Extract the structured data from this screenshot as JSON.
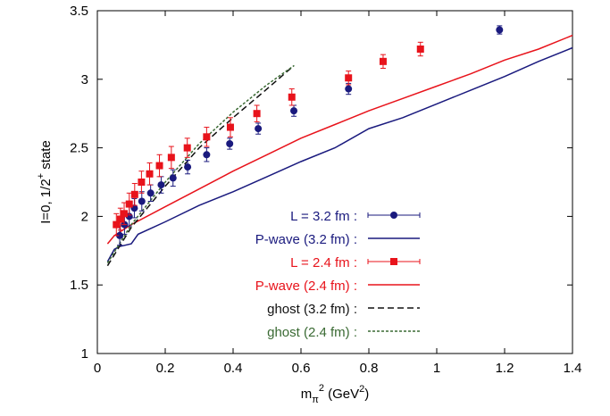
{
  "chart_data": {
    "type": "scatter",
    "xlabel_main": "m",
    "xlabel_sub": "π",
    "xlabel_sup": "2",
    "xlabel_units_open": " (GeV",
    "xlabel_units_sup": "2",
    "xlabel_units_close": ")",
    "ylabel_main": "I=0, 1/2",
    "ylabel_sup": "+",
    "ylabel_tail": " state",
    "xlim": [
      0,
      1.4
    ],
    "ylim": [
      1,
      3.5
    ],
    "xticks": [
      0,
      0.2,
      0.4,
      0.6,
      0.8,
      1,
      1.2,
      1.4
    ],
    "xtick_labels": [
      "0",
      "0.2",
      "0.4",
      "0.6",
      "0.8",
      "1",
      "1.2",
      "1.4"
    ],
    "yticks": [
      1,
      1.5,
      2,
      2.5,
      3,
      3.5
    ],
    "ytick_labels": [
      "1",
      "1.5",
      "2",
      "2.5",
      "3",
      "3.5"
    ],
    "legend_position": "lower-right",
    "series": [
      {
        "name": "L = 3.2 fm :",
        "kind": "points",
        "marker": "circle",
        "color": "#1a1a7e",
        "points": [
          {
            "x": 0.066,
            "y": 1.86,
            "err": 0.07
          },
          {
            "x": 0.08,
            "y": 1.94,
            "err": 0.07
          },
          {
            "x": 0.094,
            "y": 2.0,
            "err": 0.07
          },
          {
            "x": 0.109,
            "y": 2.06,
            "err": 0.07
          },
          {
            "x": 0.131,
            "y": 2.11,
            "err": 0.07
          },
          {
            "x": 0.157,
            "y": 2.17,
            "err": 0.06
          },
          {
            "x": 0.188,
            "y": 2.23,
            "err": 0.06
          },
          {
            "x": 0.223,
            "y": 2.28,
            "err": 0.06
          },
          {
            "x": 0.266,
            "y": 2.36,
            "err": 0.05
          },
          {
            "x": 0.322,
            "y": 2.45,
            "err": 0.05
          },
          {
            "x": 0.39,
            "y": 2.53,
            "err": 0.04
          },
          {
            "x": 0.474,
            "y": 2.64,
            "err": 0.04
          },
          {
            "x": 0.579,
            "y": 2.77,
            "err": 0.04
          },
          {
            "x": 0.74,
            "y": 2.93,
            "err": 0.04
          },
          {
            "x": 1.185,
            "y": 3.36,
            "err": 0.03
          }
        ]
      },
      {
        "name": "P-wave (3.2 fm) :",
        "kind": "line",
        "dash": "solid",
        "color": "#1a1a7e",
        "points": [
          [
            0.03,
            1.67
          ],
          [
            0.05,
            1.76
          ],
          [
            0.065,
            1.78
          ],
          [
            0.1,
            1.8
          ],
          [
            0.12,
            1.87
          ],
          [
            0.2,
            1.96
          ],
          [
            0.3,
            2.08
          ],
          [
            0.4,
            2.18
          ],
          [
            0.5,
            2.29
          ],
          [
            0.6,
            2.4
          ],
          [
            0.7,
            2.5
          ],
          [
            0.8,
            2.64
          ],
          [
            0.9,
            2.72
          ],
          [
            1.0,
            2.82
          ],
          [
            1.1,
            2.92
          ],
          [
            1.2,
            3.02
          ],
          [
            1.3,
            3.13
          ],
          [
            1.4,
            3.23
          ]
        ]
      },
      {
        "name": "L = 2.4 fm :",
        "kind": "points",
        "marker": "square",
        "color": "#e8131b",
        "points": [
          {
            "x": 0.056,
            "y": 1.94,
            "err": 0.08
          },
          {
            "x": 0.068,
            "y": 1.98,
            "err": 0.08
          },
          {
            "x": 0.079,
            "y": 2.02,
            "err": 0.08
          },
          {
            "x": 0.094,
            "y": 2.09,
            "err": 0.08
          },
          {
            "x": 0.11,
            "y": 2.16,
            "err": 0.08
          },
          {
            "x": 0.13,
            "y": 2.25,
            "err": 0.08
          },
          {
            "x": 0.154,
            "y": 2.31,
            "err": 0.08
          },
          {
            "x": 0.183,
            "y": 2.37,
            "err": 0.08
          },
          {
            "x": 0.218,
            "y": 2.43,
            "err": 0.08
          },
          {
            "x": 0.265,
            "y": 2.5,
            "err": 0.07
          },
          {
            "x": 0.322,
            "y": 2.58,
            "err": 0.07
          },
          {
            "x": 0.392,
            "y": 2.65,
            "err": 0.07
          },
          {
            "x": 0.47,
            "y": 2.75,
            "err": 0.06
          },
          {
            "x": 0.573,
            "y": 2.87,
            "err": 0.06
          },
          {
            "x": 0.74,
            "y": 3.01,
            "err": 0.05
          },
          {
            "x": 0.842,
            "y": 3.13,
            "err": 0.05
          },
          {
            "x": 0.952,
            "y": 3.22,
            "err": 0.05
          }
        ]
      },
      {
        "name": "P-wave (2.4 fm) :",
        "kind": "line",
        "dash": "solid",
        "color": "#e8131b",
        "points": [
          [
            0.03,
            1.8
          ],
          [
            0.05,
            1.86
          ],
          [
            0.1,
            1.94
          ],
          [
            0.2,
            2.07
          ],
          [
            0.3,
            2.2
          ],
          [
            0.4,
            2.33
          ],
          [
            0.5,
            2.45
          ],
          [
            0.6,
            2.57
          ],
          [
            0.7,
            2.67
          ],
          [
            0.8,
            2.77
          ],
          [
            0.9,
            2.86
          ],
          [
            1.0,
            2.95
          ],
          [
            1.1,
            3.04
          ],
          [
            1.2,
            3.14
          ],
          [
            1.3,
            3.22
          ],
          [
            1.4,
            3.32
          ]
        ]
      },
      {
        "name": "ghost (3.2 fm) :",
        "kind": "line",
        "dash": "dashed",
        "color": "#111111",
        "points": [
          [
            0.03,
            1.64
          ],
          [
            0.1,
            1.92
          ],
          [
            0.2,
            2.22
          ],
          [
            0.3,
            2.5
          ],
          [
            0.4,
            2.72
          ],
          [
            0.5,
            2.93
          ],
          [
            0.57,
            3.08
          ]
        ]
      },
      {
        "name": "ghost (2.4 fm) :",
        "kind": "line",
        "dash": "dotted",
        "color": "#3a6a33",
        "points": [
          [
            0.03,
            1.66
          ],
          [
            0.1,
            1.94
          ],
          [
            0.2,
            2.25
          ],
          [
            0.3,
            2.53
          ],
          [
            0.4,
            2.76
          ],
          [
            0.5,
            2.96
          ],
          [
            0.58,
            3.1
          ]
        ]
      }
    ]
  }
}
